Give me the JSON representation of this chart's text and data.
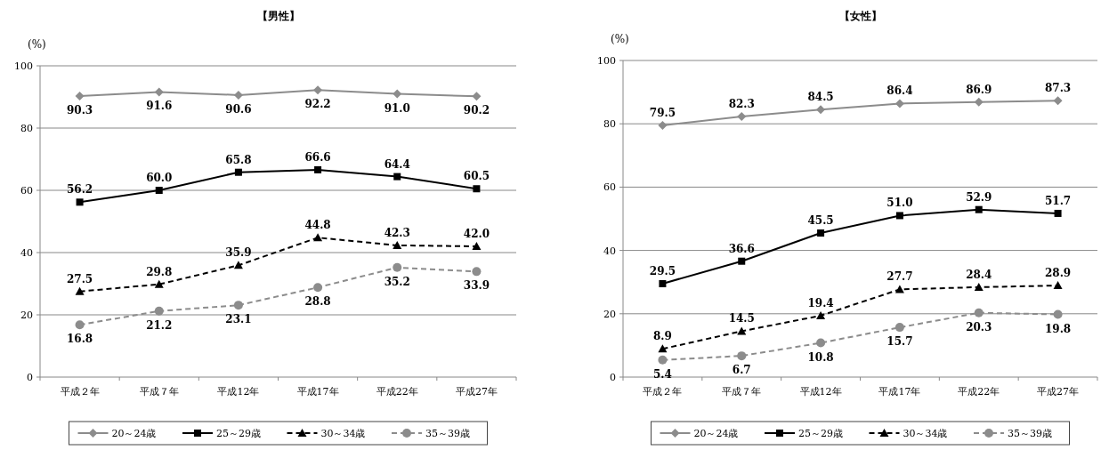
{
  "chart_data": [
    {
      "type": "line",
      "title": "【男性】",
      "ylabel": "(%)",
      "categories": [
        "平成２年",
        "平成７年",
        "平成12年",
        "平成17年",
        "平成22年",
        "平成27年"
      ],
      "ylim": [
        0,
        100
      ],
      "yticks": [
        0,
        20,
        40,
        60,
        80,
        100
      ],
      "grid": "y",
      "legend": "bottom",
      "series": [
        {
          "name": "20～24歳",
          "color": "#8c8c8c",
          "marker": "diamond",
          "line_style": "solid",
          "values": [
            90.3,
            91.6,
            90.6,
            92.2,
            91.0,
            90.2
          ],
          "value_labels": [
            "90.3",
            "91.6",
            "90.6",
            "92.2",
            "91.0",
            "90.2"
          ]
        },
        {
          "name": "25～29歳",
          "color": "#000000",
          "marker": "square",
          "line_style": "solid",
          "values": [
            56.2,
            60.0,
            65.8,
            66.6,
            64.4,
            60.5
          ],
          "value_labels": [
            "56.2",
            "60.0",
            "65.8",
            "66.6",
            "64.4",
            "60.5"
          ]
        },
        {
          "name": "30～34歳",
          "color": "#000000",
          "marker": "triangle",
          "line_style": "dashed",
          "values": [
            27.5,
            29.8,
            35.9,
            44.8,
            42.3,
            42.0
          ],
          "value_labels": [
            "27.5",
            "29.8",
            "35.9",
            "44.8",
            "42.3",
            "42.0"
          ]
        },
        {
          "name": "35～39歳",
          "color": "#8c8c8c",
          "marker": "circle",
          "line_style": "dashed",
          "values": [
            16.8,
            21.2,
            23.1,
            28.8,
            35.2,
            33.9
          ],
          "value_labels": [
            "16.8",
            "21.2",
            "23.1",
            "28.8",
            "35.2",
            "33.9"
          ]
        }
      ]
    },
    {
      "type": "line",
      "title": "【女性】",
      "ylabel": "(%)",
      "categories": [
        "平成２年",
        "平成７年",
        "平成12年",
        "平成17年",
        "平成22年",
        "平成27年"
      ],
      "ylim": [
        0,
        100
      ],
      "yticks": [
        0,
        20,
        40,
        60,
        80,
        100
      ],
      "grid": "y",
      "legend": "bottom",
      "series": [
        {
          "name": "20～24歳",
          "color": "#8c8c8c",
          "marker": "diamond",
          "line_style": "solid",
          "values": [
            79.5,
            82.3,
            84.5,
            86.4,
            86.9,
            87.3
          ],
          "value_labels": [
            "79.5",
            "82.3",
            "84.5",
            "86.4",
            "86.9",
            "87.3"
          ]
        },
        {
          "name": "25～29歳",
          "color": "#000000",
          "marker": "square",
          "line_style": "solid",
          "values": [
            29.5,
            36.6,
            45.5,
            51.0,
            52.9,
            51.7
          ],
          "value_labels": [
            "29.5",
            "36.6",
            "45.5",
            "51.0",
            "52.9",
            "51.7"
          ]
        },
        {
          "name": "30～34歳",
          "color": "#000000",
          "marker": "triangle",
          "line_style": "dashed",
          "values": [
            8.9,
            14.5,
            19.4,
            27.7,
            28.4,
            28.9
          ],
          "value_labels": [
            "8.9",
            "14.5",
            "19.4",
            "27.7",
            "28.4",
            "28.9"
          ]
        },
        {
          "name": "35～39歳",
          "color": "#8c8c8c",
          "marker": "circle",
          "line_style": "dashed",
          "values": [
            5.4,
            6.7,
            10.8,
            15.7,
            20.3,
            19.8
          ],
          "value_labels": [
            "5.4",
            "6.7",
            "10.8",
            "15.7",
            "20.3",
            "19.8"
          ]
        }
      ]
    }
  ]
}
